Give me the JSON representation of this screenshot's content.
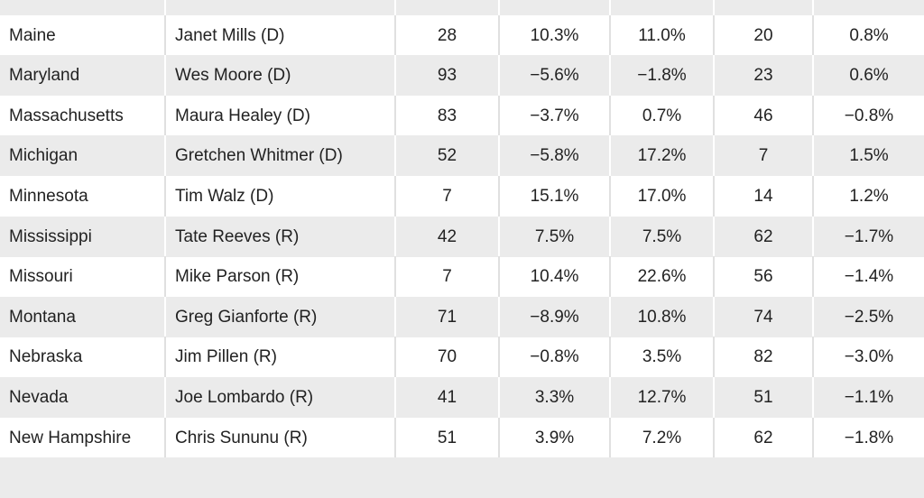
{
  "table": {
    "rows": [
      [
        "Maine",
        "Janet Mills (D)",
        28,
        "10.3%",
        "11.0%",
        20,
        "0.8%"
      ],
      [
        "Maryland",
        "Wes Moore (D)",
        93,
        "−5.6%",
        "−1.8%",
        23,
        "0.6%"
      ],
      [
        "Massachusetts",
        "Maura Healey (D)",
        83,
        "−3.7%",
        "0.7%",
        46,
        "−0.8%"
      ],
      [
        "Michigan",
        "Gretchen Whitmer (D)",
        52,
        "−5.8%",
        "17.2%",
        7,
        "1.5%"
      ],
      [
        "Minnesota",
        "Tim Walz (D)",
        7,
        "15.1%",
        "17.0%",
        14,
        "1.2%"
      ],
      [
        "Mississippi",
        "Tate Reeves (R)",
        42,
        "7.5%",
        "7.5%",
        62,
        "−1.7%"
      ],
      [
        "Missouri",
        "Mike Parson (R)",
        7,
        "10.4%",
        "22.6%",
        56,
        "−1.4%"
      ],
      [
        "Montana",
        "Greg Gianforte (R)",
        71,
        "−8.9%",
        "10.8%",
        74,
        "−2.5%"
      ],
      [
        "Nebraska",
        "Jim Pillen (R)",
        70,
        "−0.8%",
        "3.5%",
        82,
        "−3.0%"
      ],
      [
        "Nevada",
        "Joe Lombardo (R)",
        41,
        "3.3%",
        "12.7%",
        51,
        "−1.1%"
      ],
      [
        "New Hampshire",
        "Chris Sununu (R)",
        51,
        "3.9%",
        "7.2%",
        62,
        "−1.8%"
      ]
    ]
  }
}
